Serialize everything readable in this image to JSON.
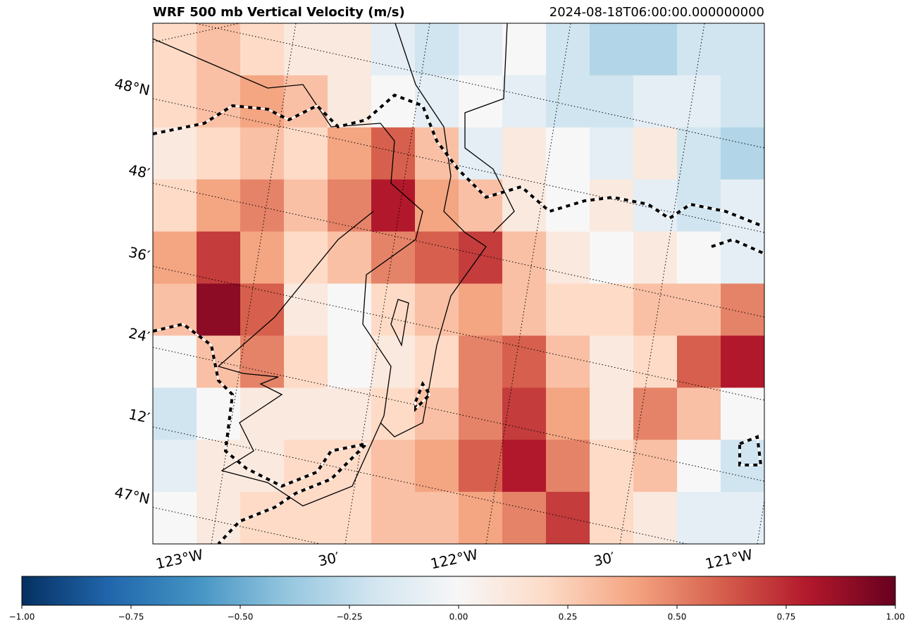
{
  "chart_data": {
    "type": "heatmap",
    "title": "WRF 500 mb Vertical Velocity (m/s)",
    "subtitle": "2024-08-18T06:00:00.000000000",
    "lat_labels": [
      "48°N",
      "48′",
      "36′",
      "24′",
      "12′",
      "47°N"
    ],
    "lon_labels": [
      "123°W",
      "30′",
      "122°W",
      "30′",
      "121°W"
    ],
    "values": [
      [
        0.2,
        0.3,
        0.2,
        0.1,
        0.1,
        -0.1,
        -0.2,
        -0.1,
        0.0,
        -0.2,
        -0.3,
        -0.3,
        -0.2,
        -0.2
      ],
      [
        0.2,
        0.3,
        0.4,
        0.3,
        0.1,
        0.0,
        -0.1,
        0.0,
        -0.1,
        -0.2,
        -0.2,
        -0.1,
        -0.1,
        -0.2
      ],
      [
        0.1,
        0.2,
        0.3,
        0.2,
        0.4,
        0.6,
        0.3,
        -0.1,
        0.1,
        0.0,
        -0.1,
        0.1,
        -0.2,
        -0.3
      ],
      [
        0.2,
        0.4,
        0.5,
        0.3,
        0.5,
        0.8,
        0.4,
        0.3,
        0.1,
        0.0,
        0.1,
        -0.1,
        -0.2,
        -0.1
      ],
      [
        0.4,
        0.7,
        0.4,
        0.2,
        0.3,
        0.5,
        0.6,
        0.7,
        0.3,
        0.1,
        0.0,
        0.1,
        0.0,
        -0.1
      ],
      [
        0.3,
        0.9,
        0.6,
        0.1,
        0.0,
        0.2,
        0.3,
        0.4,
        0.3,
        0.2,
        0.2,
        0.3,
        0.3,
        0.5
      ],
      [
        0.0,
        0.3,
        0.5,
        0.2,
        0.0,
        0.1,
        0.2,
        0.5,
        0.6,
        0.3,
        0.1,
        0.2,
        0.6,
        0.8
      ],
      [
        -0.2,
        0.0,
        0.1,
        0.1,
        0.1,
        0.2,
        0.3,
        0.5,
        0.7,
        0.4,
        0.1,
        0.5,
        0.3,
        0.0
      ],
      [
        -0.1,
        0.1,
        0.1,
        0.2,
        0.2,
        0.3,
        0.4,
        0.6,
        0.8,
        0.5,
        0.2,
        0.3,
        0.0,
        -0.2
      ],
      [
        0.0,
        0.1,
        0.2,
        0.2,
        0.2,
        0.3,
        0.3,
        0.4,
        0.5,
        0.7,
        0.2,
        0.1,
        -0.1,
        -0.1
      ]
    ],
    "clim": [
      -1,
      1
    ],
    "colormap": [
      "#053061",
      "#2166ac",
      "#4393c3",
      "#92c5de",
      "#d1e5f0",
      "#f7f7f7",
      "#fddbc7",
      "#f4a582",
      "#d6604d",
      "#b2182b",
      "#67001f"
    ],
    "cticks": [
      {
        "value": -1,
        "label": "−1.00"
      },
      {
        "value": -0.75,
        "label": "−0.75"
      },
      {
        "value": -0.5,
        "label": "−0.50"
      },
      {
        "value": -0.25,
        "label": "−0.25"
      },
      {
        "value": 0,
        "label": "0.00"
      },
      {
        "value": 0.25,
        "label": "0.25"
      },
      {
        "value": 0.5,
        "label": "0.50"
      },
      {
        "value": 0.75,
        "label": "0.75"
      },
      {
        "value": 1,
        "label": "1.00"
      }
    ]
  }
}
